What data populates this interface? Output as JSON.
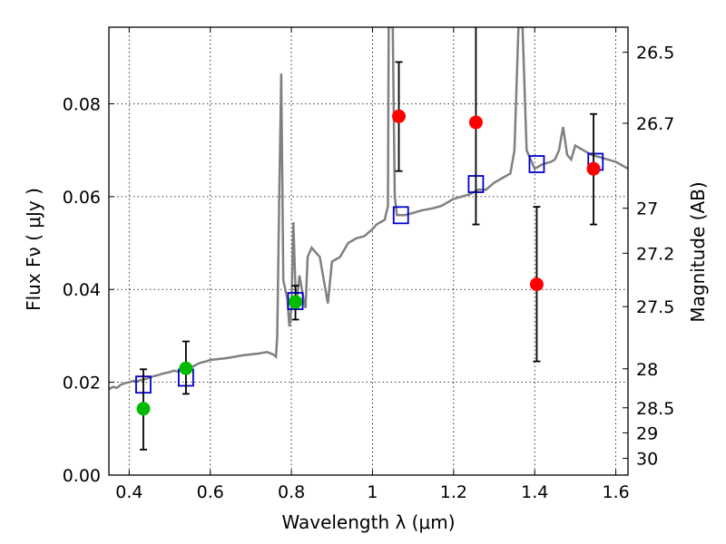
{
  "chart_data": {
    "type": "scatter",
    "xlabel": "Wavelength  λ (μm)",
    "ylabel": "Flux  Fν  ( μJy )",
    "ylabel_right": "Magnitude (AB)",
    "xlim": [
      0.35,
      1.63
    ],
    "ylim": [
      0.0,
      0.0965
    ],
    "grid": true,
    "x_ticks": [
      0.4,
      0.6,
      0.8,
      1.0,
      1.2,
      1.4,
      1.6
    ],
    "x_tick_labels": [
      "0.4",
      "0.6",
      "0.8",
      "1",
      "1.2",
      "1.4",
      "1.6"
    ],
    "y_ticks": [
      0.0,
      0.02,
      0.04,
      0.06,
      0.08
    ],
    "y_tick_labels": [
      "0.00",
      "0.02",
      "0.04",
      "0.06",
      "0.08"
    ],
    "right_ticks": [
      {
        "label": "26.5",
        "flux": 0.0911
      },
      {
        "label": "26.7",
        "flux": 0.0758
      },
      {
        "label": "27",
        "flux": 0.0575
      },
      {
        "label": "27.2",
        "flux": 0.0478
      },
      {
        "label": "27.5",
        "flux": 0.0363
      },
      {
        "label": "28",
        "flux": 0.0229
      },
      {
        "label": "28.5",
        "flux": 0.0145
      },
      {
        "label": "29",
        "flux": 0.0091
      },
      {
        "label": "30",
        "flux": 0.0036
      }
    ],
    "colors": {
      "spectrum": "#808080",
      "model": "#0000cc",
      "green": "#00bb00",
      "red": "#ff0000",
      "errorbar": "#000000"
    },
    "series": [
      {
        "kind": "line",
        "points": [
          [
            0.35,
            0.0185
          ],
          [
            0.36,
            0.019
          ],
          [
            0.37,
            0.0188
          ],
          [
            0.38,
            0.0195
          ],
          [
            0.39,
            0.0198
          ],
          [
            0.4,
            0.02
          ],
          [
            0.41,
            0.0203
          ],
          [
            0.42,
            0.0202
          ],
          [
            0.43,
            0.0205
          ],
          [
            0.44,
            0.0207
          ],
          [
            0.45,
            0.021
          ],
          [
            0.46,
            0.0213
          ],
          [
            0.47,
            0.0215
          ],
          [
            0.48,
            0.0218
          ],
          [
            0.49,
            0.022
          ],
          [
            0.5,
            0.0222
          ],
          [
            0.51,
            0.0225
          ],
          [
            0.52,
            0.0223
          ],
          [
            0.53,
            0.0228
          ],
          [
            0.54,
            0.023
          ],
          [
            0.55,
            0.0232
          ],
          [
            0.56,
            0.0235
          ],
          [
            0.57,
            0.024
          ],
          [
            0.58,
            0.0243
          ],
          [
            0.59,
            0.0245
          ],
          [
            0.6,
            0.0248
          ],
          [
            0.62,
            0.025
          ],
          [
            0.64,
            0.0252
          ],
          [
            0.66,
            0.0255
          ],
          [
            0.68,
            0.0258
          ],
          [
            0.7,
            0.026
          ],
          [
            0.72,
            0.0262
          ],
          [
            0.74,
            0.0265
          ],
          [
            0.755,
            0.026
          ],
          [
            0.762,
            0.0255
          ],
          [
            0.765,
            0.03
          ],
          [
            0.77,
            0.06
          ],
          [
            0.775,
            0.0865
          ],
          [
            0.78,
            0.042
          ],
          [
            0.79,
            0.038
          ],
          [
            0.795,
            0.032
          ],
          [
            0.8,
            0.036
          ],
          [
            0.805,
            0.0545
          ],
          [
            0.81,
            0.04
          ],
          [
            0.815,
            0.039
          ],
          [
            0.82,
            0.043
          ],
          [
            0.83,
            0.038
          ],
          [
            0.835,
            0.036
          ],
          [
            0.84,
            0.047
          ],
          [
            0.85,
            0.049
          ],
          [
            0.86,
            0.048
          ],
          [
            0.87,
            0.047
          ],
          [
            0.88,
            0.042
          ],
          [
            0.89,
            0.037
          ],
          [
            0.9,
            0.046
          ],
          [
            0.92,
            0.047
          ],
          [
            0.94,
            0.05
          ],
          [
            0.96,
            0.051
          ],
          [
            0.98,
            0.0515
          ],
          [
            1.0,
            0.053
          ],
          [
            1.01,
            0.054
          ],
          [
            1.02,
            0.0545
          ],
          [
            1.03,
            0.055
          ],
          [
            1.038,
            0.058
          ],
          [
            1.04,
            0.0965
          ],
          [
            1.05,
            0.0965
          ],
          [
            1.055,
            0.06
          ],
          [
            1.06,
            0.056
          ],
          [
            1.08,
            0.056
          ],
          [
            1.1,
            0.0565
          ],
          [
            1.12,
            0.057
          ],
          [
            1.15,
            0.0575
          ],
          [
            1.17,
            0.058
          ],
          [
            1.2,
            0.0595
          ],
          [
            1.22,
            0.06
          ],
          [
            1.24,
            0.0605
          ],
          [
            1.26,
            0.0615
          ],
          [
            1.28,
            0.0615
          ],
          [
            1.3,
            0.063
          ],
          [
            1.32,
            0.064
          ],
          [
            1.34,
            0.065
          ],
          [
            1.35,
            0.07
          ],
          [
            1.36,
            0.0965
          ],
          [
            1.37,
            0.0965
          ],
          [
            1.38,
            0.07
          ],
          [
            1.4,
            0.066
          ],
          [
            1.42,
            0.067
          ],
          [
            1.44,
            0.0675
          ],
          [
            1.45,
            0.068
          ],
          [
            1.46,
            0.07
          ],
          [
            1.47,
            0.075
          ],
          [
            1.48,
            0.069
          ],
          [
            1.49,
            0.068
          ],
          [
            1.5,
            0.071
          ],
          [
            1.52,
            0.07
          ],
          [
            1.54,
            0.069
          ],
          [
            1.56,
            0.0685
          ],
          [
            1.58,
            0.068
          ],
          [
            1.6,
            0.0675
          ],
          [
            1.63,
            0.066
          ]
        ]
      },
      {
        "kind": "model-squares",
        "points": [
          [
            0.435,
            0.0195
          ],
          [
            0.54,
            0.021
          ],
          [
            0.81,
            0.0375
          ],
          [
            1.07,
            0.056
          ],
          [
            1.255,
            0.0627
          ],
          [
            1.405,
            0.067
          ],
          [
            1.55,
            0.0675
          ]
        ]
      },
      {
        "kind": "green-points",
        "points": [
          {
            "x": 0.435,
            "y": 0.0143,
            "lo": 0.0055,
            "hi": 0.0228
          },
          {
            "x": 0.54,
            "y": 0.023,
            "lo": 0.0175,
            "hi": 0.0288
          },
          {
            "x": 0.81,
            "y": 0.0373,
            "lo": 0.0335,
            "hi": 0.0408
          }
        ]
      },
      {
        "kind": "red-points",
        "points": [
          {
            "x": 1.065,
            "y": 0.0773,
            "lo": 0.0655,
            "hi": 0.089
          },
          {
            "x": 1.255,
            "y": 0.076,
            "lo": 0.054,
            "hi": 0.0965
          },
          {
            "x": 1.405,
            "y": 0.0411,
            "lo": 0.0245,
            "hi": 0.0578
          },
          {
            "x": 1.545,
            "y": 0.066,
            "lo": 0.054,
            "hi": 0.0778
          }
        ]
      }
    ]
  }
}
